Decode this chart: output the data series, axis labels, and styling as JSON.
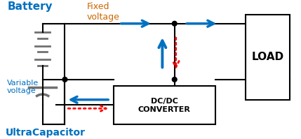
{
  "bg_color": "#ffffff",
  "line_color": "#000000",
  "blue_arrow": "#0070c0",
  "red_arrow": "#ff0000",
  "label_battery": "Battery",
  "label_ultracap": "UltraCapacitor",
  "label_load": "LOAD",
  "label_dcdc": "DC/DC\nCONVERTER",
  "label_fixed": "Fixed\nvoltage",
  "label_variable": "Variable\nvoltage",
  "figsize": [
    4.29,
    1.99
  ],
  "dpi": 100
}
